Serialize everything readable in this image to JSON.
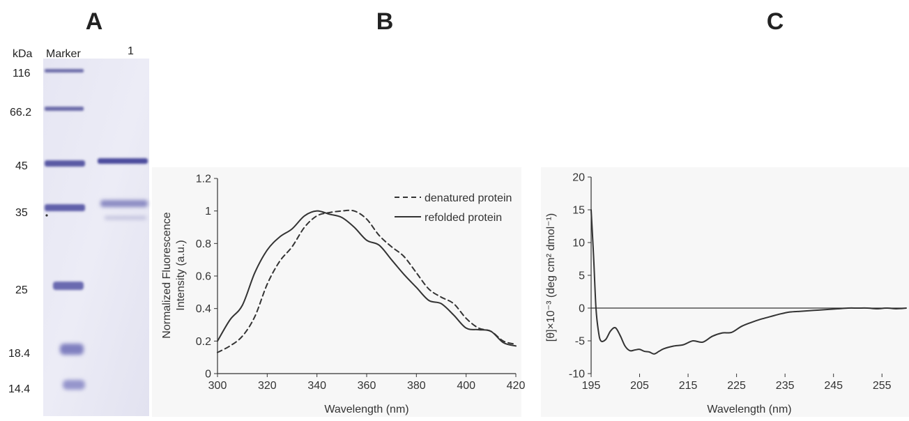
{
  "panels": {
    "a": {
      "letter": "A",
      "kda_label": "kDa",
      "marker_label": "Marker",
      "lane_label": "1",
      "marker_sizes": [
        "116",
        "66.2",
        "45",
        "35",
        "25",
        "18.4",
        "14.4"
      ]
    },
    "b": {
      "letter": "B"
    },
    "c": {
      "letter": "C"
    }
  },
  "chart_data": [
    {
      "type": "line",
      "xlabel": "Wavelength (nm)",
      "ylabel_line1": "Normalized Fluorescence",
      "ylabel_line2": "Intensity (a.u.)",
      "xlim": [
        300,
        420
      ],
      "ylim": [
        0,
        1.2
      ],
      "xticks": [
        "300",
        "320",
        "340",
        "360",
        "380",
        "400",
        "420"
      ],
      "yticks": [
        "0",
        "0.2",
        "0.4",
        "0.6",
        "0.8",
        "1",
        "1.2"
      ],
      "legend_position": "top-right",
      "grid": false,
      "series": [
        {
          "name": "denatured protein",
          "style": "dashed",
          "color": "#333333",
          "x": [
            300,
            305,
            310,
            315,
            320,
            325,
            330,
            335,
            340,
            345,
            350,
            355,
            360,
            365,
            370,
            375,
            380,
            385,
            390,
            395,
            400,
            405,
            410,
            415,
            420
          ],
          "y": [
            0.13,
            0.17,
            0.23,
            0.35,
            0.55,
            0.69,
            0.78,
            0.9,
            0.97,
            0.99,
            1.0,
            1.0,
            0.95,
            0.85,
            0.78,
            0.72,
            0.62,
            0.52,
            0.47,
            0.43,
            0.34,
            0.28,
            0.26,
            0.2,
            0.18
          ]
        },
        {
          "name": "refolded protein",
          "style": "solid",
          "color": "#333333",
          "x": [
            300,
            305,
            310,
            315,
            320,
            325,
            330,
            335,
            340,
            345,
            350,
            355,
            360,
            365,
            370,
            375,
            380,
            385,
            390,
            395,
            400,
            405,
            410,
            415,
            420
          ],
          "y": [
            0.2,
            0.33,
            0.42,
            0.62,
            0.76,
            0.84,
            0.89,
            0.97,
            1.0,
            0.98,
            0.96,
            0.9,
            0.82,
            0.79,
            0.7,
            0.61,
            0.53,
            0.45,
            0.43,
            0.36,
            0.28,
            0.27,
            0.26,
            0.19,
            0.17
          ]
        }
      ]
    },
    {
      "type": "line",
      "xlabel": "Wavelength (nm)",
      "ylabel": "[θ]×10⁻³ (deg cm² dmol⁻¹)",
      "xlim": [
        195,
        260
      ],
      "ylim": [
        -10,
        20
      ],
      "xticks": [
        "195",
        "205",
        "215",
        "225",
        "235",
        "245",
        "255"
      ],
      "yticks": [
        "-10",
        "-5",
        "0",
        "5",
        "10",
        "15",
        "20"
      ],
      "grid": false,
      "series": [
        {
          "style": "solid",
          "color": "#333333",
          "x": [
            195,
            195.5,
            196,
            196.5,
            197,
            198,
            199,
            200,
            201,
            202,
            203,
            204,
            205,
            206,
            207,
            208,
            209,
            210,
            212,
            214,
            216,
            218,
            220,
            222,
            224,
            226,
            228,
            230,
            232,
            234,
            236,
            238,
            240,
            242,
            244,
            246,
            248,
            250,
            252,
            254,
            256,
            258,
            260
          ],
          "y": [
            15,
            8,
            0,
            -3.5,
            -5,
            -4.8,
            -3.5,
            -3,
            -4.2,
            -5.8,
            -6.5,
            -6.4,
            -6.3,
            -6.6,
            -6.7,
            -7,
            -6.6,
            -6.2,
            -5.8,
            -5.6,
            -5,
            -5.2,
            -4.3,
            -3.8,
            -3.7,
            -2.8,
            -2.2,
            -1.7,
            -1.3,
            -0.9,
            -0.6,
            -0.5,
            -0.4,
            -0.3,
            -0.2,
            -0.1,
            0,
            0,
            0,
            -0.1,
            0,
            -0.1,
            0
          ]
        }
      ]
    }
  ]
}
